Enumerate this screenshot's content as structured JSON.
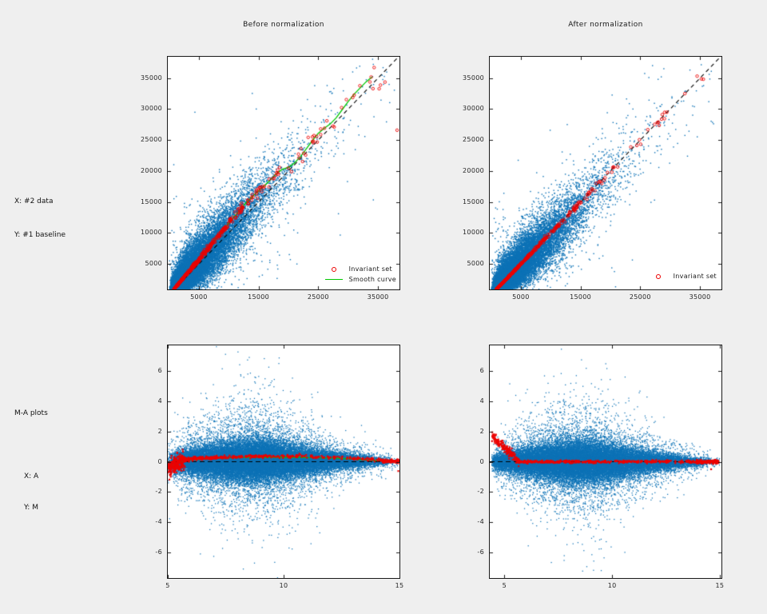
{
  "figure": {
    "bg": "#efefef",
    "side_labels": {
      "top_x": "X: #2 data",
      "top_y": "Y: #1 baseline",
      "ma_title": "M-A plots",
      "ma_x": "X: A",
      "ma_y": "Y: M"
    },
    "colors": {
      "points_blue": "#0d72b6",
      "invariant_red": "#ec0000",
      "smooth_green": "#00c800",
      "reference_dash": "#000000",
      "axis": "#1a1a1a",
      "plot_bg": "#ffffff"
    }
  },
  "chart_data": [
    {
      "id": "before",
      "type": "scatter",
      "title": "Before normalization",
      "xlabel": "",
      "ylabel": "",
      "xlim": [
        -200,
        38600
      ],
      "ylim": [
        900,
        38450
      ],
      "xticks": [
        5000,
        15000,
        25000,
        35000
      ],
      "yticks": [
        5000,
        10000,
        15000,
        20000,
        25000,
        30000,
        35000
      ],
      "grid": false,
      "legend_position": "bottom-right",
      "legend": [
        {
          "label": "Invariant set",
          "marker": "red-circle"
        },
        {
          "label": "Smooth curve",
          "marker": "green-line"
        }
      ],
      "series_notes": "dense blue probe-intensity cloud along diagonal; red invariant-set circles follow smooth curve above identity line; green lowess smooth curve; black dashed identity line",
      "curve": [
        [
          0,
          0
        ],
        [
          1000,
          1100
        ],
        [
          2000,
          2250
        ],
        [
          3000,
          3420
        ],
        [
          4000,
          4580
        ],
        [
          5000,
          5720
        ],
        [
          6000,
          6880
        ],
        [
          7000,
          8050
        ],
        [
          8000,
          9200
        ],
        [
          9000,
          10380
        ],
        [
          10000,
          11550
        ],
        [
          11000,
          12700
        ],
        [
          12000,
          13880
        ],
        [
          13000,
          15000
        ],
        [
          14000,
          15900
        ],
        [
          15000,
          16800
        ],
        [
          16000,
          17650
        ],
        [
          17000,
          18600
        ],
        [
          18000,
          19600
        ],
        [
          19000,
          20300
        ],
        [
          20000,
          20600
        ],
        [
          21000,
          21300
        ],
        [
          22000,
          22300
        ],
        [
          23000,
          23600
        ],
        [
          24000,
          24900
        ],
        [
          25000,
          26100
        ],
        [
          26000,
          26900
        ],
        [
          27000,
          27600
        ],
        [
          28000,
          28600
        ],
        [
          29000,
          29900
        ],
        [
          30000,
          31200
        ],
        [
          31000,
          32400
        ],
        [
          32000,
          33400
        ],
        [
          33000,
          34400
        ],
        [
          34000,
          35200
        ]
      ],
      "identity_line": {
        "style": "dashed",
        "from": 900,
        "to": 38450
      },
      "outliers_red": [
        [
          38200,
          26600
        ]
      ],
      "gen_blue": {
        "seed": 101,
        "n": 22000,
        "vmin": 150,
        "vscale": 4200,
        "vmax": 38200,
        "umix": 0.006,
        "s0": 0.09,
        "s1": 0.4,
        "sdecay": 6000,
        "lean": 0.5
      },
      "gen_red": {
        "seed": 202,
        "n": 430,
        "vmin": 250,
        "vscale": 5200,
        "vmax": 36000,
        "umix": 0.08,
        "jitter": 0.022
      }
    },
    {
      "id": "after",
      "type": "scatter",
      "title": "After normalization",
      "xlabel": "",
      "ylabel": "",
      "xlim": [
        -200,
        38600
      ],
      "ylim": [
        900,
        38450
      ],
      "xticks": [
        5000,
        15000,
        25000,
        35000
      ],
      "yticks": [
        5000,
        10000,
        15000,
        20000,
        25000,
        30000,
        35000
      ],
      "grid": false,
      "legend_position": "bottom-right",
      "legend": [
        {
          "label": "Invariant set",
          "marker": "red-circle"
        }
      ],
      "series_notes": "dense blue normalized-intensity cloud; red invariant-set circles tight on identity line; black dashed identity line",
      "identity_line": {
        "style": "dashed",
        "from": 900,
        "to": 38450
      },
      "outliers_red": [],
      "gen_blue": {
        "seed": 303,
        "n": 22000,
        "vmin": 150,
        "vscale": 4200,
        "vmax": 38200,
        "umix": 0.006,
        "s0": 0.09,
        "s1": 0.4,
        "sdecay": 6000,
        "lean": 0
      },
      "gen_red": {
        "seed": 404,
        "n": 430,
        "vmin": 250,
        "vscale": 5200,
        "vmax": 36000,
        "umix": 0.08,
        "jitter": 0.012
      }
    },
    {
      "id": "ma_before",
      "type": "scatter",
      "title": "",
      "xlabel": "A",
      "ylabel": "M",
      "xlim": [
        5,
        15
      ],
      "ylim": [
        -7.7,
        7.7
      ],
      "xticks": [
        5,
        10,
        15
      ],
      "yticks": [
        -6,
        -4,
        -2,
        0,
        2,
        4,
        6
      ],
      "grid": false,
      "legend": [],
      "series_notes": "M-A cloud before normalization; red invariant set band slightly above M=0 with negative dip near A=5; green smooth curve; black dashed M=0 line",
      "bias": [
        [
          4.95,
          -0.55
        ],
        [
          5.2,
          -0.3
        ],
        [
          5.55,
          0.0
        ],
        [
          6.0,
          0.12
        ],
        [
          6.5,
          0.17
        ],
        [
          7.0,
          0.2
        ],
        [
          7.5,
          0.24
        ],
        [
          8.0,
          0.27
        ],
        [
          9.0,
          0.3
        ],
        [
          10.0,
          0.29
        ],
        [
          11.0,
          0.27
        ],
        [
          12.0,
          0.24
        ],
        [
          12.8,
          0.19
        ],
        [
          13.5,
          0.12
        ],
        [
          14.2,
          0.06
        ],
        [
          14.7,
          0.02
        ],
        [
          15.05,
          0.0
        ]
      ],
      "zero_line": {
        "style": "dashed",
        "y": 0
      },
      "outliers_red": [
        [
          14.95,
          -0.62
        ]
      ],
      "gen_blue": {
        "seed": 505,
        "n": 32000,
        "aMin": 5.0,
        "aMax": 15.0,
        "apow": 1.35,
        "sdBase": 0.16,
        "sdPeak": 0.95,
        "sdCenter": 8.6,
        "sdWidth": 2.6,
        "biasWeight": 0.25
      },
      "gen_red": {
        "seed": 606,
        "nBlob": 220,
        "blobRange": [
          4.95,
          5.75
        ],
        "blobSd": 0.28,
        "nMid": 380,
        "midOffset": 0.06,
        "midSd": 0.055,
        "nEnd": 110,
        "endRange": [
          14.25,
          15.0
        ],
        "endSd": 0.05
      }
    },
    {
      "id": "ma_after",
      "type": "scatter",
      "title": "",
      "xlabel": "A",
      "ylabel": "M",
      "xlim": [
        4.32,
        15.08
      ],
      "ylim": [
        -7.7,
        7.7
      ],
      "xticks": [
        5,
        10,
        15
      ],
      "yticks": [
        -6,
        -4,
        -2,
        0,
        2,
        4,
        6
      ],
      "grid": false,
      "legend": [],
      "series_notes": "M-A cloud after normalization; red invariant set tight on M=0 with descending funnel at low A; black dashed M=0 line",
      "zero_line": {
        "style": "dashed",
        "y": 0
      },
      "outliers_red": [
        [
          14.6,
          -0.5
        ]
      ],
      "gen_blue": {
        "seed": 707,
        "n": 32000,
        "aMin": 4.4,
        "aMax": 15.05,
        "apow": 1.35,
        "sdBase": 0.16,
        "sdPeak": 0.95,
        "sdCenter": 8.6,
        "sdWidth": 2.6,
        "biasWeight": 0
      },
      "gen_red": {
        "seed": 808,
        "nFunnel": 150,
        "funnelRange": [
          4.42,
          5.7
        ],
        "funnelSlope": 1.35,
        "funnelSd": 0.16,
        "nLine": 420,
        "lineSd": 0.045,
        "nEnd": 130,
        "endRange": [
          13.9,
          14.95
        ],
        "endSd": 0.06
      }
    }
  ]
}
